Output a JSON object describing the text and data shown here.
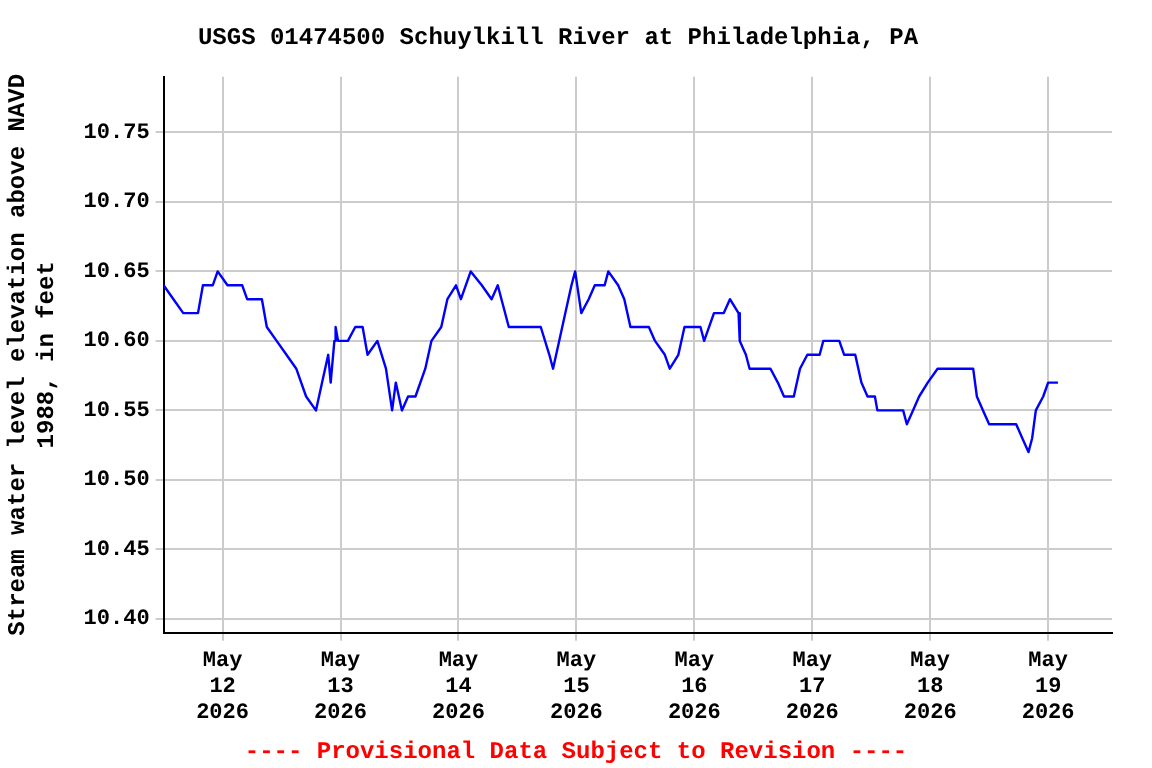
{
  "chart_data": {
    "type": "line",
    "title": "USGS 01474500 Schuylkill River at Philadelphia, PA",
    "ylabel": "Stream water level elevation above NAVD 1988, in feet",
    "annotations": [
      "---- Provisional Data Subject to Revision ----"
    ],
    "x": [
      "2026-05-11T12:00",
      "2026-05-11T14:00",
      "2026-05-11T16:00",
      "2026-05-11T19:00",
      "2026-05-11T20:00",
      "2026-05-11T22:00",
      "2026-05-11T23:00",
      "2026-05-12T01:00",
      "2026-05-12T04:00",
      "2026-05-12T05:00",
      "2026-05-12T08:00",
      "2026-05-12T09:00",
      "2026-05-12T11:00",
      "2026-05-12T13:00",
      "2026-05-12T15:00",
      "2026-05-12T16:00",
      "2026-05-12T17:00",
      "2026-05-12T19:00",
      "2026-05-12T20:15",
      "2026-05-12T21:30",
      "2026-05-12T22:00",
      "2026-05-12T22:45",
      "2026-05-12T23:00",
      "2026-05-12T23:30",
      "2026-05-13T01:30",
      "2026-05-13T03:00",
      "2026-05-13T04:30",
      "2026-05-13T05:30",
      "2026-05-13T07:30",
      "2026-05-13T09:15",
      "2026-05-13T10:30",
      "2026-05-13T11:15",
      "2026-05-13T12:30",
      "2026-05-13T13:45",
      "2026-05-13T15:15",
      "2026-05-13T17:15",
      "2026-05-13T18:30",
      "2026-05-13T20:30",
      "2026-05-13T21:45",
      "2026-05-13T23:30",
      "2026-05-14T00:30",
      "2026-05-14T02:30",
      "2026-05-14T04:45",
      "2026-05-14T06:45",
      "2026-05-14T08:00",
      "2026-05-14T08:45",
      "2026-05-14T10:15",
      "2026-05-14T16:45",
      "2026-05-14T18:30",
      "2026-05-14T19:15",
      "2026-05-14T20:30",
      "2026-05-14T21:45",
      "2026-05-14T23:00",
      "2026-05-14T23:45",
      "2026-05-15T01:00",
      "2026-05-15T02:30",
      "2026-05-15T03:45",
      "2026-05-15T05:45",
      "2026-05-15T06:30",
      "2026-05-15T08:30",
      "2026-05-15T09:45",
      "2026-05-15T11:00",
      "2026-05-15T14:45",
      "2026-05-15T16:00",
      "2026-05-15T18:00",
      "2026-05-15T19:00",
      "2026-05-15T20:45",
      "2026-05-15T22:00",
      "2026-05-16T01:15",
      "2026-05-16T02:00",
      "2026-05-16T04:00",
      "2026-05-16T06:00",
      "2026-05-16T07:15",
      "2026-05-16T09:00",
      "2026-05-16T09:15",
      "2026-05-16T10:30",
      "2026-05-16T11:15",
      "2026-05-16T15:30",
      "2026-05-16T17:00",
      "2026-05-16T18:15",
      "2026-05-16T20:15",
      "2026-05-16T21:30",
      "2026-05-16T23:00",
      "2026-05-17T01:30",
      "2026-05-17T02:15",
      "2026-05-17T05:30",
      "2026-05-17T06:30",
      "2026-05-17T08:45",
      "2026-05-17T10:00",
      "2026-05-17T11:15",
      "2026-05-17T12:45",
      "2026-05-17T13:15",
      "2026-05-17T18:30",
      "2026-05-17T19:15",
      "2026-05-17T20:30",
      "2026-05-17T21:45",
      "2026-05-17T23:30",
      "2026-05-18T01:30",
      "2026-05-18T08:45",
      "2026-05-18T09:30",
      "2026-05-18T10:45",
      "2026-05-18T12:00",
      "2026-05-18T17:30",
      "2026-05-18T18:45",
      "2026-05-18T20:00",
      "2026-05-18T20:45",
      "2026-05-18T21:30",
      "2026-05-18T23:00",
      "2026-05-19T00:00",
      "2026-05-19T02:00"
    ],
    "series": [
      {
        "color": "#0000ff",
        "values": [
          10.64,
          10.63,
          10.62,
          10.62,
          10.64,
          10.64,
          10.65,
          10.64,
          10.64,
          10.63,
          10.63,
          10.61,
          10.6,
          10.59,
          10.58,
          10.57,
          10.56,
          10.55,
          10.57,
          10.59,
          10.57,
          10.6,
          10.61,
          10.6,
          10.6,
          10.61,
          10.61,
          10.59,
          10.6,
          10.58,
          10.55,
          10.57,
          10.55,
          10.56,
          10.56,
          10.58,
          10.6,
          10.61,
          10.63,
          10.64,
          10.63,
          10.65,
          10.64,
          10.63,
          10.64,
          10.63,
          10.61,
          10.61,
          10.59,
          10.58,
          10.6,
          10.62,
          10.64,
          10.65,
          10.62,
          10.63,
          10.64,
          10.64,
          10.65,
          10.64,
          10.63,
          10.61,
          10.61,
          10.6,
          10.59,
          10.58,
          10.59,
          10.61,
          10.61,
          10.6,
          10.62,
          10.62,
          10.63,
          10.62,
          10.6,
          10.59,
          10.58,
          10.58,
          10.57,
          10.56,
          10.56,
          10.58,
          10.59,
          10.59,
          10.6,
          10.6,
          10.59,
          10.59,
          10.57,
          10.56,
          10.56,
          10.55,
          10.55,
          10.54,
          10.55,
          10.56,
          10.57,
          10.58,
          10.58,
          10.56,
          10.55,
          10.54,
          10.54,
          10.53,
          10.52,
          10.53,
          10.55,
          10.56,
          10.57,
          10.57
        ]
      }
    ],
    "xlim": [
      "2026-05-11T12:00",
      "2026-05-19T13:00"
    ],
    "xticks": [
      {
        "value": "2026-05-12",
        "label": "May 12 2026"
      },
      {
        "value": "2026-05-13",
        "label": "May 13 2026"
      },
      {
        "value": "2026-05-14",
        "label": "May 14 2026"
      },
      {
        "value": "2026-05-15",
        "label": "May 15 2026"
      },
      {
        "value": "2026-05-16",
        "label": "May 16 2026"
      },
      {
        "value": "2026-05-17",
        "label": "May 17 2026"
      },
      {
        "value": "2026-05-18",
        "label": "May 18 2026"
      },
      {
        "value": "2026-05-19",
        "label": "May 19 2026"
      }
    ],
    "ylim": [
      10.39,
      10.79
    ],
    "yticks": [
      {
        "value": 10.4,
        "label": "10.40"
      },
      {
        "value": 10.45,
        "label": "10.45"
      },
      {
        "value": 10.5,
        "label": "10.50"
      },
      {
        "value": 10.55,
        "label": "10.55"
      },
      {
        "value": 10.6,
        "label": "10.60"
      },
      {
        "value": 10.65,
        "label": "10.65"
      },
      {
        "value": 10.7,
        "label": "10.70"
      },
      {
        "value": 10.75,
        "label": "10.75"
      }
    ],
    "grid": true,
    "legend": false,
    "marker": "none",
    "line_style": "solid"
  }
}
